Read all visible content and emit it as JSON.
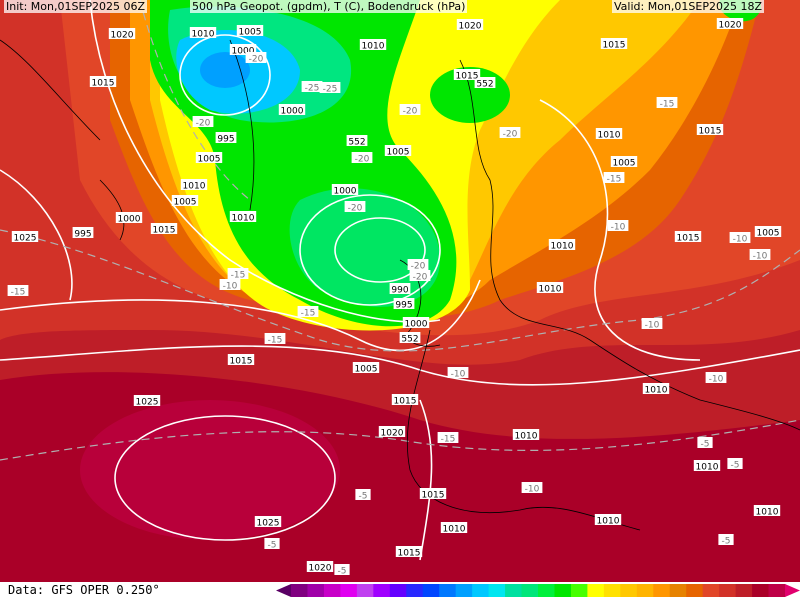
{
  "header": {
    "init": "Init: Mon,01SEP2025 06Z",
    "title": "500 hPa Geopot. (gpdm), T (C), Bodendruck (hPa)",
    "valid": "Valid: Mon,01SEP2025 18Z"
  },
  "footer": {
    "data_source": "Data: GFS OPER 0.250°"
  },
  "colorbar": {
    "colors": [
      "#5a0064",
      "#800080",
      "#a000a8",
      "#c800c8",
      "#e000f0",
      "#c040f0",
      "#a000ff",
      "#6400ff",
      "#2828ff",
      "#0046ff",
      "#0078ff",
      "#00a0ff",
      "#00c8ff",
      "#00e6f0",
      "#00e0a0",
      "#00e67a",
      "#00f03c",
      "#00e600",
      "#46ff00",
      "#ffff00",
      "#ffe100",
      "#ffc800",
      "#ffb400",
      "#ff9600",
      "#e68200",
      "#e66400",
      "#e14628",
      "#d23228",
      "#be1e28",
      "#aa0028",
      "#be0046",
      "#e1006e"
    ]
  },
  "labels": [
    "1020",
    "1010",
    "1005",
    "1000",
    "1010",
    "1020",
    "1015",
    "552",
    "1020",
    "1015",
    "1015",
    "-20",
    "-25",
    "-20",
    "1000",
    "995",
    "-25",
    "1005",
    "552",
    "-20",
    "1005",
    "1010",
    "-20",
    "-20",
    "1010",
    "-15",
    "1015",
    "1005",
    "-15",
    "1000",
    "1005",
    "1010",
    "-20",
    "1000",
    "995",
    "1015",
    "1025",
    "-15",
    "-10",
    "-15",
    "1010",
    "1015",
    "-10",
    "-20",
    "990",
    "-10",
    "1010",
    "-20",
    "995",
    "-10",
    "1000",
    "-15",
    "552",
    "1005",
    "-10",
    "-15",
    "-10",
    "1015",
    "1005",
    "-10",
    "1010",
    "1025",
    "1015",
    "1010",
    "1020",
    "-15",
    "1010",
    "-5",
    "1010",
    "-5",
    "1015",
    "-5",
    "-10",
    "1025",
    "1010",
    "1010",
    "-5",
    "-5",
    "1015",
    "1020",
    "-5"
  ]
}
